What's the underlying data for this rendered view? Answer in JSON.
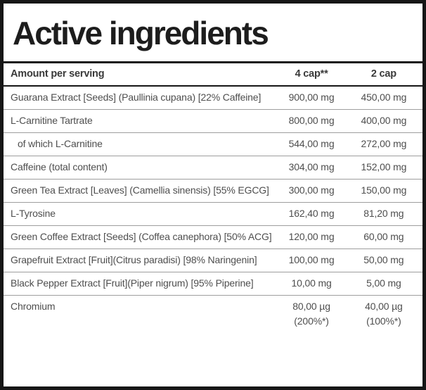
{
  "title": "Active ingredients",
  "table": {
    "columns": [
      "Amount per serving",
      "4 cap**",
      "2 cap"
    ],
    "rows": [
      {
        "name": "Guarana Extract [Seeds] (Paullinia cupana) [22% Caffeine]",
        "per_4cap": "900,00 mg",
        "per_2cap": "450,00 mg",
        "indent": false
      },
      {
        "name": "L-Carnitine Tartrate",
        "per_4cap": "800,00 mg",
        "per_2cap": "400,00 mg",
        "indent": false
      },
      {
        "name": "of which L-Carnitine",
        "per_4cap": "544,00 mg",
        "per_2cap": "272,00 mg",
        "indent": true
      },
      {
        "name": "Caffeine (total content)",
        "per_4cap": "304,00 mg",
        "per_2cap": "152,00 mg",
        "indent": false
      },
      {
        "name": "Green Tea Extract [Leaves] (Camellia sinensis) [55% EGCG]",
        "per_4cap": "300,00 mg",
        "per_2cap": "150,00 mg",
        "indent": false
      },
      {
        "name": "L-Tyrosine",
        "per_4cap": "162,40 mg",
        "per_2cap": "81,20 mg",
        "indent": false
      },
      {
        "name": "Green Coffee Extract [Seeds] (Coffea canephora) [50% ACG]",
        "per_4cap": "120,00 mg",
        "per_2cap": "60,00 mg",
        "indent": false
      },
      {
        "name": "Grapefruit Extract [Fruit](Citrus paradisi) [98% Naringenin]",
        "per_4cap": "100,00 mg",
        "per_2cap": "50,00 mg",
        "indent": false
      },
      {
        "name": "Black Pepper Extract [Fruit](Piper nigrum) [95% Piperine]",
        "per_4cap": "10,00 mg",
        "per_2cap": "5,00 mg",
        "indent": false
      },
      {
        "name": "Chromium",
        "per_4cap": "80,00 µg\n(200%*)",
        "per_2cap": "40,00 µg\n(100%*)",
        "indent": false
      }
    ]
  },
  "colors": {
    "border": "#161616",
    "title_text": "#1d1d1d",
    "header_text": "#3a3a3a",
    "body_text": "#4e4e4e",
    "row_separator": "#9e9e9e",
    "background": "#ffffff"
  }
}
